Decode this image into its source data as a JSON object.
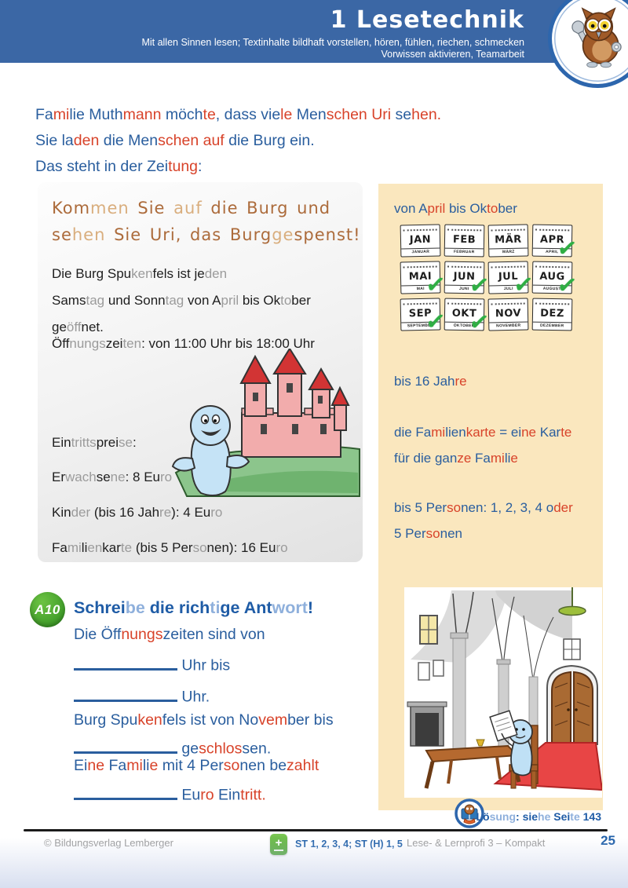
{
  "colors": {
    "header_blue": "#3B67A5",
    "text_blue": "#2A5E9E",
    "text_red": "#D8432A",
    "panel_yellow": "#FAE7BE",
    "badge_green": "#2F8F1F",
    "check_green": "#2FAE44",
    "footer_blue": "#1F5FA8"
  },
  "header": {
    "title": "1 Lesetechnik",
    "subtitle_line1": "Mit allen Sinnen lesen; Textinhalte bildhaft vorstellen, hören, fühlen, riechen, schmecken",
    "subtitle_line2": "Vorwissen aktivieren, Teamarbeit"
  },
  "intro": {
    "lines": [
      [
        {
          "t": "Fa",
          "c": "blue"
        },
        {
          "t": "mi",
          "c": "red"
        },
        {
          "t": "lie",
          "c": "blue"
        },
        {
          "t": " Muth",
          "c": "blue"
        },
        {
          "t": "mann",
          "c": "red"
        },
        {
          "t": " möch",
          "c": "blue"
        },
        {
          "t": "te",
          "c": "red"
        },
        {
          "t": ", dass vie",
          "c": "blue"
        },
        {
          "t": "le",
          "c": "red"
        },
        {
          "t": " Men",
          "c": "blue"
        },
        {
          "t": "schen",
          "c": "red"
        },
        {
          "t": " ",
          "c": "blue"
        },
        {
          "t": "Uri",
          "c": "red"
        },
        {
          "t": " se",
          "c": "blue"
        },
        {
          "t": "hen.",
          "c": "red"
        }
      ],
      [
        {
          "t": "Sie la",
          "c": "blue"
        },
        {
          "t": "den",
          "c": "red"
        },
        {
          "t": " die Men",
          "c": "blue"
        },
        {
          "t": "schen",
          "c": "red"
        },
        {
          "t": " ",
          "c": "blue"
        },
        {
          "t": "auf",
          "c": "red"
        },
        {
          "t": " die Burg ein.",
          "c": "blue"
        }
      ],
      [
        {
          "t": "Das steht in der Zei",
          "c": "blue"
        },
        {
          "t": "tung",
          "c": "red"
        },
        {
          "t": ":",
          "c": "blue"
        }
      ]
    ]
  },
  "ad": {
    "headline_lines": [
      [
        {
          "t": "Kom",
          "c": "brown"
        },
        {
          "t": "men",
          "c": "tan"
        },
        {
          "t": " Sie ",
          "c": "brown"
        },
        {
          "t": "auf",
          "c": "tan"
        },
        {
          "t": " die Burg und",
          "c": "brown"
        }
      ],
      [
        {
          "t": "se",
          "c": "brown"
        },
        {
          "t": "hen",
          "c": "tan"
        },
        {
          "t": " Sie Uri, das Burg",
          "c": "brown"
        },
        {
          "t": "ge",
          "c": "tan"
        },
        {
          "t": "spenst!",
          "c": "brown"
        }
      ]
    ],
    "body_lines": [
      [
        {
          "t": "Die Burg Spu",
          "c": "black"
        },
        {
          "t": "ken",
          "c": "gray"
        },
        {
          "t": "fels ist je",
          "c": "black"
        },
        {
          "t": "den",
          "c": "gray"
        }
      ],
      [
        {
          "t": "Sams",
          "c": "black"
        },
        {
          "t": "tag",
          "c": "gray"
        },
        {
          "t": " und Sonn",
          "c": "black"
        },
        {
          "t": "tag",
          "c": "gray"
        },
        {
          "t": " von A",
          "c": "black"
        },
        {
          "t": "pril",
          "c": "gray"
        },
        {
          "t": " bis Ok",
          "c": "black"
        },
        {
          "t": "to",
          "c": "gray"
        },
        {
          "t": "ber",
          "c": "black"
        }
      ],
      [
        {
          "t": "ge",
          "c": "black"
        },
        {
          "t": "öff",
          "c": "gray"
        },
        {
          "t": "net.",
          "c": "black"
        }
      ]
    ],
    "hours_line": [
      {
        "t": "Öff",
        "c": "black"
      },
      {
        "t": "nungs",
        "c": "gray"
      },
      {
        "t": "zei",
        "c": "black"
      },
      {
        "t": "ten",
        "c": "gray"
      },
      {
        "t": ": von 11:00 Uhr bis 18:00 Uhr",
        "c": "black"
      }
    ],
    "price_lines": [
      [
        {
          "t": "Ein",
          "c": "black"
        },
        {
          "t": "tritts",
          "c": "gray"
        },
        {
          "t": "prei",
          "c": "black"
        },
        {
          "t": "se",
          "c": "gray"
        },
        {
          "t": ":",
          "c": "black"
        }
      ],
      [
        {
          "t": "Er",
          "c": "black"
        },
        {
          "t": "wach",
          "c": "gray"
        },
        {
          "t": "se",
          "c": "black"
        },
        {
          "t": "ne",
          "c": "gray"
        },
        {
          "t": ": 8 Eu",
          "c": "black"
        },
        {
          "t": "ro",
          "c": "gray"
        }
      ],
      [
        {
          "t": "Kin",
          "c": "black"
        },
        {
          "t": "der",
          "c": "gray"
        },
        {
          "t": " (bis 16 Jah",
          "c": "black"
        },
        {
          "t": "re",
          "c": "gray"
        },
        {
          "t": "): 4 Eu",
          "c": "black"
        },
        {
          "t": "ro",
          "c": "gray"
        }
      ],
      [
        {
          "t": "Fa",
          "c": "black"
        },
        {
          "t": "mi",
          "c": "gray"
        },
        {
          "t": "li",
          "c": "black"
        },
        {
          "t": "en",
          "c": "gray"
        },
        {
          "t": "kar",
          "c": "black"
        },
        {
          "t": "te",
          "c": "gray"
        },
        {
          "t": " (bis 5 Per",
          "c": "black"
        },
        {
          "t": "so",
          "c": "gray"
        },
        {
          "t": "nen",
          "c": "black"
        },
        {
          "t": "): 16 Eu",
          "c": "black"
        },
        {
          "t": "ro",
          "c": "gray"
        }
      ]
    ]
  },
  "info_panel": {
    "months_label": [
      {
        "t": "von A",
        "c": "blue"
      },
      {
        "t": "pril",
        "c": "red"
      },
      {
        "t": " bis Ok",
        "c": "blue"
      },
      {
        "t": "to",
        "c": "red"
      },
      {
        "t": "ber",
        "c": "blue"
      }
    ],
    "calendar": {
      "months": [
        {
          "abbr": "JAN",
          "name": "JANUAR",
          "checked": false
        },
        {
          "abbr": "FEB",
          "name": "FEBRUAR",
          "checked": false
        },
        {
          "abbr": "MÄR",
          "name": "MÄRZ",
          "checked": false
        },
        {
          "abbr": "APR",
          "name": "APRIL",
          "checked": true
        },
        {
          "abbr": "MAI",
          "name": "MAI",
          "checked": true
        },
        {
          "abbr": "JUN",
          "name": "JUNI",
          "checked": true
        },
        {
          "abbr": "JUL",
          "name": "JULI",
          "checked": true
        },
        {
          "abbr": "AUG",
          "name": "AUGUST",
          "checked": true
        },
        {
          "abbr": "SEP",
          "name": "SEPTEMBER",
          "checked": true
        },
        {
          "abbr": "OKT",
          "name": "OKTOBER",
          "checked": true
        },
        {
          "abbr": "NOV",
          "name": "NOVEMBER",
          "checked": false
        },
        {
          "abbr": "DEZ",
          "name": "DEZEMBER",
          "checked": false
        }
      ]
    },
    "age_note": [
      {
        "t": "bis 16 Jah",
        "c": "blue"
      },
      {
        "t": "re",
        "c": "red"
      }
    ],
    "family_note_lines": [
      [
        {
          "t": "die Fa",
          "c": "blue"
        },
        {
          "t": "mi",
          "c": "red"
        },
        {
          "t": "li",
          "c": "blue"
        },
        {
          "t": "en",
          "c": "blue"
        },
        {
          "t": "karte",
          "c": "red"
        },
        {
          "t": " = ei",
          "c": "blue"
        },
        {
          "t": "ne",
          "c": "red"
        },
        {
          "t": " Kar",
          "c": "blue"
        },
        {
          "t": "te",
          "c": "red"
        }
      ],
      [
        {
          "t": "für die gan",
          "c": "blue"
        },
        {
          "t": "ze",
          "c": "red"
        },
        {
          "t": " Fa",
          "c": "blue"
        },
        {
          "t": "mi",
          "c": "red"
        },
        {
          "t": "li",
          "c": "blue"
        },
        {
          "t": "e",
          "c": "red"
        }
      ]
    ],
    "persons_note_lines": [
      [
        {
          "t": "bis 5 Per",
          "c": "blue"
        },
        {
          "t": "so",
          "c": "red"
        },
        {
          "t": "nen",
          "c": "blue"
        },
        {
          "t": ": 1, 2, 3, 4 o",
          "c": "blue"
        },
        {
          "t": "der",
          "c": "red"
        }
      ],
      [
        {
          "t": "5 Per",
          "c": "blue"
        },
        {
          "t": "so",
          "c": "red"
        },
        {
          "t": "nen",
          "c": "blue"
        }
      ]
    ]
  },
  "task": {
    "badge": "A10",
    "heading": [
      {
        "t": "Schrei",
        "c": "dblue"
      },
      {
        "t": "be",
        "c": "lblue"
      },
      {
        "t": " die rich",
        "c": "dblue"
      },
      {
        "t": "ti",
        "c": "lblue"
      },
      {
        "t": "ge",
        "c": "dblue"
      },
      {
        "t": " Ant",
        "c": "dblue"
      },
      {
        "t": "wort",
        "c": "lblue"
      },
      {
        "t": "!",
        "c": "dblue"
      }
    ],
    "lines": [
      [
        {
          "t": "Die Öff",
          "c": "blue"
        },
        {
          "t": "nungs",
          "c": "red"
        },
        {
          "t": "zeiten sind von",
          "c": "blue"
        }
      ],
      [
        {
          "t": "",
          "c": "blank"
        },
        {
          "t": " Uhr bis",
          "c": "blue"
        }
      ],
      [
        {
          "t": "",
          "c": "blank"
        },
        {
          "t": " Uhr.",
          "c": "blue"
        }
      ],
      [
        {
          "t": "Burg Spu",
          "c": "blue"
        },
        {
          "t": "ken",
          "c": "red"
        },
        {
          "t": "fels ist von No",
          "c": "blue"
        },
        {
          "t": "vem",
          "c": "red"
        },
        {
          "t": "ber bis",
          "c": "blue"
        }
      ],
      [
        {
          "t": "",
          "c": "blank"
        },
        {
          "t": " ge",
          "c": "blue"
        },
        {
          "t": "schlos",
          "c": "red"
        },
        {
          "t": "sen.",
          "c": "blue"
        }
      ],
      [
        {
          "t": "Ei",
          "c": "blue"
        },
        {
          "t": "ne",
          "c": "red"
        },
        {
          "t": " Fa",
          "c": "blue"
        },
        {
          "t": "mi",
          "c": "red"
        },
        {
          "t": "li",
          "c": "blue"
        },
        {
          "t": "e",
          "c": "red"
        },
        {
          "t": " mit 4 Per",
          "c": "blue"
        },
        {
          "t": "so",
          "c": "red"
        },
        {
          "t": "nen be",
          "c": "blue"
        },
        {
          "t": "zahlt",
          "c": "red"
        }
      ],
      [
        {
          "t": "",
          "c": "blank"
        },
        {
          "t": " Eu",
          "c": "blue"
        },
        {
          "t": "ro",
          "c": "red"
        },
        {
          "t": " Ein",
          "c": "blue"
        },
        {
          "t": "tritt.",
          "c": "red"
        }
      ]
    ],
    "line_tops": [
      797,
      833,
      873,
      906,
      939,
      964,
      998
    ]
  },
  "solution": {
    "segments": [
      {
        "t": "Lö",
        "c": "dblue"
      },
      {
        "t": "sung",
        "c": "lblue"
      },
      {
        "t": ": ",
        "c": "dblue"
      },
      {
        "t": "sie",
        "c": "dblue"
      },
      {
        "t": "he",
        "c": "lblue"
      },
      {
        "t": " Sei",
        "c": "dblue"
      },
      {
        "t": "te",
        "c": "lblue"
      },
      {
        "t": " 143",
        "c": "dblue"
      }
    ]
  },
  "footer": {
    "copyright": "© Bildungsverlag Lemberger",
    "standards": "ST 1, 2, 3, 4; ST (H) 1, 5",
    "series": "Lese- & Lernprofi 3 – Kompakt",
    "page_number": "25"
  },
  "icons": {
    "check": "✓",
    "plus": "+"
  }
}
